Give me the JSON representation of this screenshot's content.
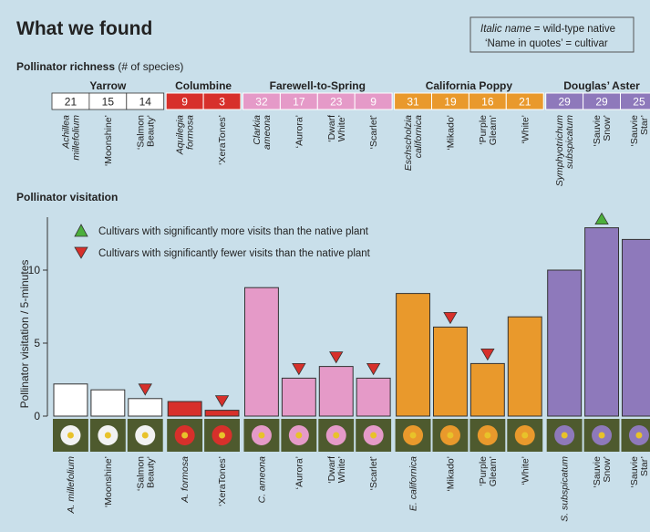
{
  "title": "What we found",
  "legend_box": {
    "line1_italic": "Italic name",
    "line1_rest": " = wild-type native",
    "line2": "‘Name in quotes’ = cultivar"
  },
  "richness": {
    "title": "Pollinator richness",
    "subtitle": " (# of species)"
  },
  "visitation": {
    "title": "Pollinator visitation",
    "legend_more": "Cultivars with significantly more visits than the native plant",
    "legend_fewer": "Cultivars with significantly fewer visits than the native plant"
  },
  "colors": {
    "background": "#c9dfea",
    "yarrow": "#ffffff",
    "columbine": "#d7302b",
    "farewell": "#e59ac8",
    "poppy": "#e9992c",
    "aster": "#8e79bb",
    "up_marker": "#4caf3c",
    "down_marker": "#d7302b"
  },
  "chart_data": {
    "type": "bar",
    "ylabel": "Pollinator visitation / 5-minutes",
    "ylim": [
      0,
      13.5
    ],
    "yticks": [
      0,
      5,
      10
    ],
    "groups": [
      {
        "name": "Yarrow",
        "color": "yarrow",
        "plants": [
          {
            "top": [
              "Achillea",
              "millefolium"
            ],
            "top_italic": true,
            "bottom": [
              "A. millefolium"
            ],
            "bottom_italic": true,
            "richness": 21,
            "visits": 2.2,
            "sig": null
          },
          {
            "top": [
              "‘Moonshine’"
            ],
            "top_italic": false,
            "bottom": [
              "‘Moonshine’"
            ],
            "bottom_italic": false,
            "richness": 15,
            "visits": 1.8,
            "sig": null
          },
          {
            "top": [
              "‘Salmon",
              "Beauty’"
            ],
            "top_italic": false,
            "bottom": [
              "‘Salmon",
              "Beauty’"
            ],
            "bottom_italic": false,
            "richness": 14,
            "visits": 1.2,
            "sig": "fewer"
          }
        ]
      },
      {
        "name": "Columbine",
        "color": "columbine",
        "plants": [
          {
            "top": [
              "Aquilegia",
              "formosa"
            ],
            "top_italic": true,
            "bottom": [
              "A. formosa"
            ],
            "bottom_italic": true,
            "richness": 9,
            "visits": 1.0,
            "sig": null
          },
          {
            "top": [
              "‘XeraTones’"
            ],
            "top_italic": false,
            "bottom": [
              "‘XeraTones’"
            ],
            "bottom_italic": false,
            "richness": 3,
            "visits": 0.4,
            "sig": "fewer"
          }
        ]
      },
      {
        "name": "Farewell-to-Spring",
        "color": "farewell",
        "plants": [
          {
            "top": [
              "Clarkia",
              "ameona"
            ],
            "top_italic": true,
            "bottom": [
              "C. ameona"
            ],
            "bottom_italic": true,
            "richness": 32,
            "visits": 8.8,
            "sig": null
          },
          {
            "top": [
              "‘Aurora’"
            ],
            "top_italic": false,
            "bottom": [
              "‘Aurora’"
            ],
            "bottom_italic": false,
            "richness": 17,
            "visits": 2.6,
            "sig": "fewer"
          },
          {
            "top": [
              "‘Dwarf",
              "White’"
            ],
            "top_italic": false,
            "bottom": [
              "‘Dwarf",
              "White’"
            ],
            "bottom_italic": false,
            "richness": 23,
            "visits": 3.4,
            "sig": "fewer"
          },
          {
            "top": [
              "‘Scarlet’"
            ],
            "top_italic": false,
            "bottom": [
              "‘Scarlet’"
            ],
            "bottom_italic": false,
            "richness": 9,
            "visits": 2.6,
            "sig": "fewer"
          }
        ]
      },
      {
        "name": "California Poppy",
        "color": "poppy",
        "plants": [
          {
            "top": [
              "Eschscholzia",
              "californica"
            ],
            "top_italic": true,
            "bottom": [
              "E. californica"
            ],
            "bottom_italic": true,
            "richness": 31,
            "visits": 8.4,
            "sig": null
          },
          {
            "top": [
              "‘Mikado’"
            ],
            "top_italic": false,
            "bottom": [
              "‘Mikado’"
            ],
            "bottom_italic": false,
            "richness": 19,
            "visits": 6.1,
            "sig": "fewer"
          },
          {
            "top": [
              "‘Purple",
              "Gleam’"
            ],
            "top_italic": false,
            "bottom": [
              "‘Purple",
              "Gleam’"
            ],
            "bottom_italic": false,
            "richness": 16,
            "visits": 3.6,
            "sig": "fewer"
          },
          {
            "top": [
              "‘White’"
            ],
            "top_italic": false,
            "bottom": [
              "‘White’"
            ],
            "bottom_italic": false,
            "richness": 21,
            "visits": 6.8,
            "sig": null
          }
        ]
      },
      {
        "name": "Douglas’ Aster",
        "color": "aster",
        "plants": [
          {
            "top": [
              "Symphyotrichum",
              "subspicatum"
            ],
            "top_italic": true,
            "bottom": [
              "S. subspicatum"
            ],
            "bottom_italic": true,
            "richness": 29,
            "visits": 10.0,
            "sig": null
          },
          {
            "top": [
              "‘Sauvie",
              "Snow’"
            ],
            "top_italic": false,
            "bottom": [
              "‘Sauvie",
              "Snow’"
            ],
            "bottom_italic": false,
            "richness": 29,
            "visits": 12.9,
            "sig": "more"
          },
          {
            "top": [
              "‘Sauvie",
              "Star’"
            ],
            "top_italic": false,
            "bottom": [
              "‘Sauvie",
              "Star’"
            ],
            "bottom_italic": false,
            "richness": 25,
            "visits": 12.1,
            "sig": null
          }
        ]
      }
    ]
  }
}
